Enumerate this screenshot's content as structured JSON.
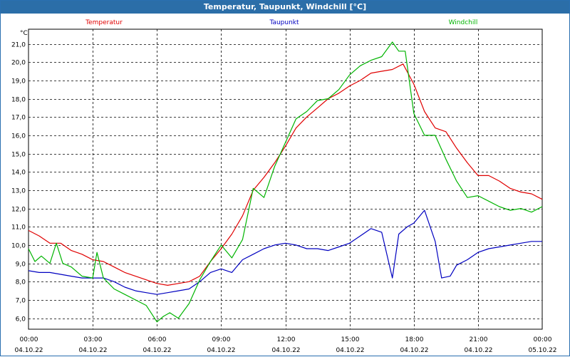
{
  "chart_data": {
    "type": "line",
    "title": "Temperatur, Taupunkt, Windchill [°C]",
    "ylabel": "°C",
    "xlabel": "",
    "ylim": [
      5.4,
      21.8
    ],
    "xlim": [
      0,
      24
    ],
    "grid": true,
    "y_ticks": [
      "21,0",
      "20,0",
      "19,0",
      "18,0",
      "17,0",
      "16,0",
      "15,0",
      "14,0",
      "13,0",
      "12,0",
      "11,0",
      "10,0",
      "9,0",
      "8,0",
      "7,0",
      "6,0"
    ],
    "y_tick_values": [
      21,
      20,
      19,
      18,
      17,
      16,
      15,
      14,
      13,
      12,
      11,
      10,
      9,
      8,
      7,
      6
    ],
    "x_ticks": [
      {
        "time": "00:00",
        "date": "04.10.22",
        "hour": 0
      },
      {
        "time": "03:00",
        "date": "04.10.22",
        "hour": 3
      },
      {
        "time": "06:00",
        "date": "04.10.22",
        "hour": 6
      },
      {
        "time": "09:00",
        "date": "04.10.22",
        "hour": 9
      },
      {
        "time": "12:00",
        "date": "04.10.22",
        "hour": 12
      },
      {
        "time": "15:00",
        "date": "04.10.22",
        "hour": 15
      },
      {
        "time": "18:00",
        "date": "04.10.22",
        "hour": 18
      },
      {
        "time": "21:00",
        "date": "04.10.22",
        "hour": 21
      },
      {
        "time": "00:00",
        "date": "05.10.22",
        "hour": 24
      }
    ],
    "series": [
      {
        "name": "Temperatur",
        "color": "#e00000",
        "x": [
          0,
          0.5,
          1,
          1.5,
          2,
          2.5,
          3,
          3.5,
          4,
          4.5,
          5,
          5.5,
          6,
          6.5,
          7,
          7.5,
          8,
          8.5,
          9,
          9.5,
          10,
          10.5,
          11,
          11.5,
          12,
          12.5,
          13,
          13.5,
          14,
          14.5,
          15,
          15.5,
          16,
          16.5,
          17,
          17.5,
          18,
          18.5,
          19,
          19.5,
          20,
          20.5,
          21,
          21.5,
          22,
          22.5,
          23,
          23.5,
          24
        ],
        "values": [
          10.8,
          10.5,
          10.1,
          10.1,
          9.7,
          9.5,
          9.2,
          9.1,
          8.8,
          8.5,
          8.3,
          8.1,
          7.9,
          7.8,
          7.9,
          8.0,
          8.3,
          9.1,
          9.8,
          10.6,
          11.6,
          13.0,
          13.7,
          14.5,
          15.4,
          16.4,
          17.0,
          17.5,
          18.0,
          18.3,
          18.7,
          19.0,
          19.4,
          19.5,
          19.6,
          19.9,
          18.8,
          17.3,
          16.4,
          16.2,
          15.3,
          14.5,
          13.8,
          13.8,
          13.5,
          13.1,
          12.9,
          12.8,
          12.5
        ]
      },
      {
        "name": "Taupunkt",
        "color": "#0000c0",
        "x": [
          0,
          0.5,
          1,
          1.5,
          2,
          2.5,
          3,
          3.5,
          4,
          4.5,
          5,
          5.5,
          6,
          6.5,
          7,
          7.5,
          8,
          8.5,
          9,
          9.5,
          10,
          10.5,
          11,
          11.5,
          12,
          12.5,
          13,
          13.5,
          14,
          14.5,
          15,
          15.5,
          16,
          16.5,
          17,
          17.3,
          17.7,
          18,
          18.5,
          19,
          19.3,
          19.7,
          20,
          20.5,
          21,
          21.5,
          22,
          22.5,
          23,
          23.5,
          24
        ],
        "values": [
          8.6,
          8.5,
          8.5,
          8.4,
          8.3,
          8.2,
          8.2,
          8.2,
          8.0,
          7.7,
          7.5,
          7.4,
          7.3,
          7.4,
          7.5,
          7.6,
          8.0,
          8.5,
          8.7,
          8.5,
          9.2,
          9.5,
          9.8,
          10.0,
          10.1,
          10.0,
          9.8,
          9.8,
          9.7,
          9.9,
          10.1,
          10.5,
          10.9,
          10.7,
          8.2,
          10.6,
          11.0,
          11.2,
          11.9,
          10.2,
          8.2,
          8.3,
          8.9,
          9.2,
          9.6,
          9.8,
          9.9,
          10.0,
          10.1,
          10.2,
          10.2
        ]
      },
      {
        "name": "Windchill",
        "color": "#00b400",
        "x": [
          0,
          0.3,
          0.6,
          1,
          1.3,
          1.6,
          2,
          2.5,
          3,
          3.2,
          3.5,
          4,
          4.5,
          5,
          5.5,
          6,
          6.3,
          6.6,
          7,
          7.5,
          8,
          8.5,
          9,
          9.5,
          10,
          10.5,
          11,
          11.5,
          12,
          12.5,
          13,
          13.5,
          14,
          14.5,
          15,
          15.5,
          16,
          16.5,
          17,
          17.3,
          17.6,
          18,
          18.5,
          19,
          19.5,
          20,
          20.5,
          21,
          21.5,
          22,
          22.5,
          23,
          23.5,
          24
        ],
        "values": [
          9.8,
          9.1,
          9.4,
          9.0,
          10.1,
          9.0,
          8.8,
          8.3,
          8.2,
          9.6,
          8.2,
          7.6,
          7.3,
          7.0,
          6.7,
          5.8,
          6.1,
          6.3,
          6.0,
          6.8,
          8.1,
          9.1,
          10.0,
          9.3,
          10.3,
          13.1,
          12.6,
          14.3,
          15.6,
          16.9,
          17.3,
          17.9,
          18.0,
          18.5,
          19.3,
          19.8,
          20.1,
          20.3,
          21.1,
          20.6,
          20.6,
          17.2,
          16.0,
          16.0,
          14.7,
          13.5,
          12.6,
          12.7,
          12.4,
          12.1,
          11.9,
          12.0,
          11.8,
          12.1
        ]
      }
    ]
  }
}
